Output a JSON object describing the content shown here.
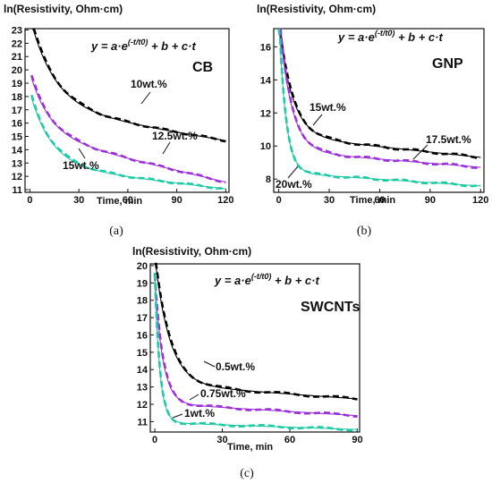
{
  "colors": {
    "black": "#000000",
    "purple": "#9b30d9",
    "cyan": "#1fc9a6"
  },
  "chart_data": [
    {
      "id": "a",
      "type": "line",
      "panel_label": "(a)",
      "tag": "CB",
      "equation": {
        "main": "y = a·e",
        "sup": "(-t/t0)",
        "rest": " + b + c·t"
      },
      "ylabel": "ln(Resistivity, Ohm·cm)",
      "xlabel": "Time, min",
      "xlim": [
        -3,
        122
      ],
      "ylim": [
        10.8,
        23.1
      ],
      "xticks": [
        0,
        30,
        60,
        90,
        120
      ],
      "yticks": [
        11,
        12,
        13,
        14,
        15,
        16,
        17,
        18,
        19,
        20,
        21,
        22,
        23
      ],
      "series": [
        {
          "name": "10wt.%",
          "color": "#000000",
          "x0": 2,
          "a": 5.9,
          "t0": 15,
          "b": 17.2,
          "c": -0.021
        },
        {
          "name": "12.5wt.%",
          "color": "#9b30d9",
          "x0": 1,
          "a": 4.3,
          "t0": 12,
          "b": 15.1,
          "c": -0.0295
        },
        {
          "name": "15wt.%",
          "color": "#1fc9a6",
          "x0": 1,
          "a": 5.1,
          "t0": 13,
          "b": 12.8,
          "c": -0.0145
        }
      ]
    },
    {
      "id": "b",
      "type": "line",
      "panel_label": "(b)",
      "tag": "GNP",
      "equation": {
        "main": "y = a·e",
        "sup": "(-t/t0)",
        "rest": " + b + c·t"
      },
      "ylabel": "ln(Resistivity, Ohm·cm)",
      "xlabel": "Time, min",
      "xlim": [
        -3,
        122
      ],
      "ylim": [
        7.2,
        17.1
      ],
      "xticks": [
        0,
        30,
        60,
        90,
        120
      ],
      "yticks": [
        8,
        10,
        12,
        14,
        16
      ],
      "series": [
        {
          "name": "15wt.%",
          "color": "#000000",
          "x0": 1,
          "a": 6.0,
          "t0": 8,
          "b": 10.6,
          "c": -0.0107
        },
        {
          "name": "17.5wt.%",
          "color": "#9b30d9",
          "x0": 1,
          "a": 7.2,
          "t0": 7,
          "b": 9.7,
          "c": -0.0082
        },
        {
          "name": "20wt.%",
          "color": "#1fc9a6",
          "x0": 0,
          "a": 9.5,
          "t0": 4,
          "b": 8.4,
          "c": -0.0068
        }
      ]
    },
    {
      "id": "c",
      "type": "line",
      "panel_label": "(c)",
      "tag": "SWCNTs",
      "equation": {
        "main": "y = a·e",
        "sup": "(-t/t0)",
        "rest": " + b + c·t"
      },
      "ylabel": "ln(Resistivity, Ohm·cm)",
      "xlabel": "Time, min",
      "xlim": [
        -2,
        91
      ],
      "ylim": [
        10.4,
        20.1
      ],
      "xticks": [
        0,
        30,
        60,
        90
      ],
      "yticks": [
        11,
        12,
        13,
        14,
        15,
        16,
        17,
        18,
        19,
        20
      ],
      "series": [
        {
          "name": "0.5wt.%",
          "color": "#000000",
          "x0": 0,
          "a": 7.4,
          "t0": 6.5,
          "b": 13.15,
          "c": -0.0093
        },
        {
          "name": "0.75wt.%",
          "color": "#9b30d9",
          "x0": 0,
          "a": 7.2,
          "t0": 3.5,
          "b": 12.05,
          "c": -0.0078
        },
        {
          "name": "1wt.%",
          "color": "#1fc9a6",
          "x0": 0,
          "a": 8.4,
          "t0": 2.2,
          "b": 10.95,
          "c": -0.0045
        }
      ]
    }
  ]
}
